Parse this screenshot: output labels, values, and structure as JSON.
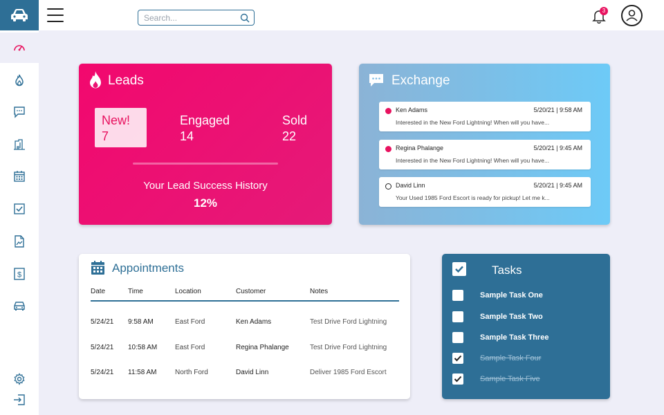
{
  "topbar": {
    "search_placeholder": "Search...",
    "notification_count": "3"
  },
  "colors": {
    "primary": "#2e6f96",
    "accent": "#e8125f",
    "background": "#eeeef8"
  },
  "sidebar": {
    "icons": [
      "dashboard-icon",
      "leads-icon",
      "chat-icon",
      "building-icon",
      "calendar-icon",
      "tasks-icon",
      "document-icon",
      "finance-icon",
      "vehicle-icon",
      "settings-icon",
      "logout-icon"
    ]
  },
  "leads": {
    "title": "Leads",
    "new_label": "New!",
    "new_value": "7",
    "engaged_label": "Engaged",
    "engaged_value": "14",
    "sold_label": "Sold",
    "sold_value": "22",
    "history_label": "Your Lead Success History",
    "history_value": "12%"
  },
  "exchange": {
    "title": "Exchange",
    "messages": [
      {
        "name": "Ken Adams",
        "time": "5/20/21  |  9:58 AM",
        "text": "Interested in the New Ford Lightning!  When will you have...",
        "unread": true
      },
      {
        "name": "Regina Phalange",
        "time": "5/20/21  |  9:45 AM",
        "text": "Interested in the New Ford Lightning!  When will you have...",
        "unread": true
      },
      {
        "name": "David Linn",
        "time": "5/20/21  |  9:45 AM",
        "text": "Your Used 1985 Ford Escort is ready for pickup!  Let me k...",
        "unread": false
      }
    ]
  },
  "appointments": {
    "title": "Appointments",
    "headers": [
      "Date",
      "Time",
      "Location",
      "Customer",
      "Notes"
    ],
    "rows": [
      [
        "5/24/21",
        "9:58 AM",
        "East Ford",
        "Ken Adams",
        "Test Drive Ford Lightning"
      ],
      [
        "5/24/21",
        "10:58 AM",
        "East Ford",
        "Regina Phalange",
        "Test Drive Ford Lightning"
      ],
      [
        "5/24/21",
        "11:58 AM",
        "North Ford",
        "David Linn",
        "Deliver 1985 Ford Escort"
      ]
    ]
  },
  "tasks": {
    "title": "Tasks",
    "items": [
      {
        "label": "Sample Task One",
        "done": false
      },
      {
        "label": "Sample Task Two",
        "done": false
      },
      {
        "label": "Sample Task Three",
        "done": false
      },
      {
        "label": "Sample Task Four",
        "done": true
      },
      {
        "label": "Sample Task Five",
        "done": true
      }
    ]
  }
}
